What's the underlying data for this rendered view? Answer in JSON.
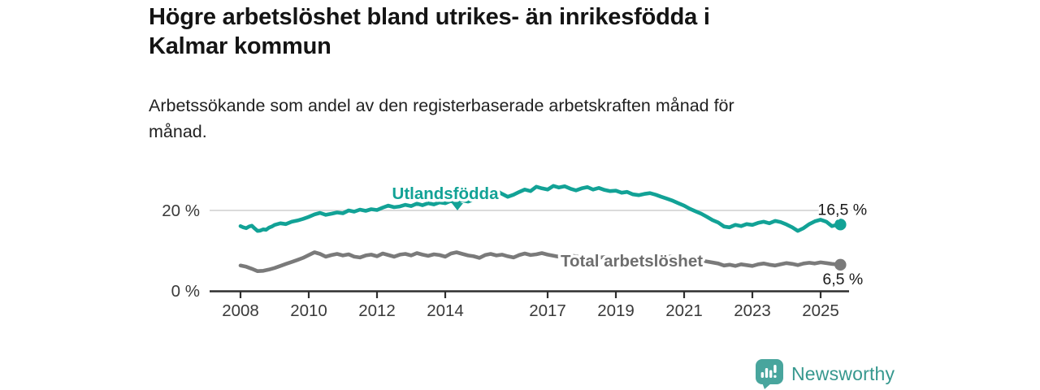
{
  "header": {
    "title": "Högre arbetslöshet bland utrikes- än inrikesfödda i\nKalmar kommun",
    "subtitle": "Arbetssökande som andel av den registerbaserade arbetskraften månad för\nmånad."
  },
  "footer": {
    "brand": "Newsworthy"
  },
  "colors": {
    "accent_teal": "#12a296",
    "series_gray": "#7a7a7a",
    "gray_label": "#6e6e6e",
    "axis_line": "#2e2e2e",
    "axis_text": "#3a3a3a",
    "gridline": "#cfcfcf",
    "annotation_text": "#1a1a1a",
    "logo_teal": "#48a59d",
    "brand_text": "#36988e"
  },
  "chart_data": {
    "type": "line",
    "unit": "%",
    "x_axis": {
      "ticks": [
        2008,
        2010,
        2012,
        2014,
        2017,
        2019,
        2021,
        2023,
        2025
      ],
      "range": [
        2007.6,
        2026.3
      ]
    },
    "y_axis": {
      "ticks": [
        {
          "v": 0,
          "label": "0 %"
        },
        {
          "v": 20,
          "label": "20 %"
        }
      ],
      "range": [
        0,
        29.5
      ],
      "gridlines": [
        20
      ]
    },
    "legend_position": "inline-labels",
    "series": [
      {
        "name": "Utlandsfödda",
        "color": "#12a296",
        "end_label": "16,5 %",
        "end_value": 16.5,
        "points": [
          [
            2008.0,
            16.1
          ],
          [
            2008.08,
            15.8
          ],
          [
            2008.17,
            15.6
          ],
          [
            2008.25,
            16.0
          ],
          [
            2008.33,
            16.2
          ],
          [
            2008.42,
            15.5
          ],
          [
            2008.5,
            14.9
          ],
          [
            2008.58,
            15.0
          ],
          [
            2008.67,
            15.3
          ],
          [
            2008.75,
            15.2
          ],
          [
            2008.83,
            15.7
          ],
          [
            2008.92,
            16.0
          ],
          [
            2009.0,
            16.4
          ],
          [
            2009.17,
            16.8
          ],
          [
            2009.33,
            16.6
          ],
          [
            2009.5,
            17.2
          ],
          [
            2009.67,
            17.5
          ],
          [
            2009.83,
            17.9
          ],
          [
            2010.0,
            18.4
          ],
          [
            2010.17,
            19.0
          ],
          [
            2010.33,
            19.4
          ],
          [
            2010.5,
            18.9
          ],
          [
            2010.67,
            19.2
          ],
          [
            2010.83,
            19.5
          ],
          [
            2011.0,
            19.3
          ],
          [
            2011.17,
            20.0
          ],
          [
            2011.33,
            19.7
          ],
          [
            2011.5,
            20.2
          ],
          [
            2011.67,
            19.9
          ],
          [
            2011.83,
            20.3
          ],
          [
            2012.0,
            20.1
          ],
          [
            2012.17,
            20.7
          ],
          [
            2012.33,
            21.2
          ],
          [
            2012.5,
            20.8
          ],
          [
            2012.67,
            21.0
          ],
          [
            2012.83,
            21.4
          ],
          [
            2013.0,
            21.1
          ],
          [
            2013.17,
            21.7
          ],
          [
            2013.33,
            21.3
          ],
          [
            2013.5,
            21.8
          ],
          [
            2013.67,
            21.5
          ],
          [
            2013.83,
            22.0
          ],
          [
            2014.0,
            21.8
          ],
          [
            2014.17,
            22.4
          ],
          [
            2014.33,
            22.0
          ],
          [
            2014.5,
            22.5
          ],
          [
            2014.67,
            22.2
          ],
          [
            2014.83,
            22.7
          ],
          [
            2015.0,
            23.2
          ],
          [
            2015.17,
            24.8
          ],
          [
            2015.33,
            24.4
          ],
          [
            2015.5,
            24.9
          ],
          [
            2015.67,
            24.1
          ],
          [
            2015.83,
            23.4
          ],
          [
            2016.0,
            23.9
          ],
          [
            2016.17,
            24.6
          ],
          [
            2016.33,
            25.2
          ],
          [
            2016.5,
            24.8
          ],
          [
            2016.67,
            25.9
          ],
          [
            2016.83,
            25.5
          ],
          [
            2017.0,
            25.2
          ],
          [
            2017.17,
            26.1
          ],
          [
            2017.33,
            25.7
          ],
          [
            2017.5,
            26.0
          ],
          [
            2017.67,
            25.4
          ],
          [
            2017.83,
            25.0
          ],
          [
            2018.0,
            25.5
          ],
          [
            2018.17,
            25.8
          ],
          [
            2018.33,
            25.2
          ],
          [
            2018.5,
            25.6
          ],
          [
            2018.67,
            25.1
          ],
          [
            2018.83,
            24.8
          ],
          [
            2019.0,
            24.9
          ],
          [
            2019.17,
            24.4
          ],
          [
            2019.33,
            24.6
          ],
          [
            2019.5,
            24.0
          ],
          [
            2019.67,
            23.8
          ],
          [
            2019.83,
            24.1
          ],
          [
            2020.0,
            24.3
          ],
          [
            2020.17,
            23.9
          ],
          [
            2020.33,
            23.4
          ],
          [
            2020.5,
            22.9
          ],
          [
            2020.67,
            22.4
          ],
          [
            2020.83,
            21.8
          ],
          [
            2021.0,
            21.2
          ],
          [
            2021.17,
            20.4
          ],
          [
            2021.33,
            19.8
          ],
          [
            2021.5,
            19.2
          ],
          [
            2021.67,
            18.4
          ],
          [
            2021.83,
            17.6
          ],
          [
            2022.0,
            17.0
          ],
          [
            2022.17,
            16.0
          ],
          [
            2022.33,
            15.8
          ],
          [
            2022.5,
            16.4
          ],
          [
            2022.67,
            16.1
          ],
          [
            2022.83,
            16.6
          ],
          [
            2023.0,
            16.4
          ],
          [
            2023.17,
            16.9
          ],
          [
            2023.33,
            17.2
          ],
          [
            2023.5,
            16.8
          ],
          [
            2023.67,
            17.4
          ],
          [
            2023.83,
            17.1
          ],
          [
            2024.0,
            16.5
          ],
          [
            2024.17,
            15.8
          ],
          [
            2024.33,
            14.9
          ],
          [
            2024.5,
            15.6
          ],
          [
            2024.67,
            16.6
          ],
          [
            2024.83,
            17.3
          ],
          [
            2025.0,
            17.7
          ],
          [
            2025.17,
            17.2
          ],
          [
            2025.33,
            16.1
          ],
          [
            2025.42,
            16.3
          ],
          [
            2025.58,
            16.5
          ]
        ]
      },
      {
        "name": "Total arbetslöshet",
        "color": "#7a7a7a",
        "end_label": "6,5 %",
        "end_value": 6.5,
        "points": [
          [
            2008.0,
            6.3
          ],
          [
            2008.17,
            6.0
          ],
          [
            2008.33,
            5.5
          ],
          [
            2008.5,
            4.9
          ],
          [
            2008.67,
            5.0
          ],
          [
            2008.83,
            5.3
          ],
          [
            2009.0,
            5.7
          ],
          [
            2009.17,
            6.2
          ],
          [
            2009.33,
            6.7
          ],
          [
            2009.5,
            7.2
          ],
          [
            2009.67,
            7.7
          ],
          [
            2009.83,
            8.2
          ],
          [
            2010.0,
            8.9
          ],
          [
            2010.17,
            9.6
          ],
          [
            2010.33,
            9.2
          ],
          [
            2010.5,
            8.5
          ],
          [
            2010.67,
            8.9
          ],
          [
            2010.83,
            9.2
          ],
          [
            2011.0,
            8.8
          ],
          [
            2011.17,
            9.1
          ],
          [
            2011.33,
            8.5
          ],
          [
            2011.5,
            8.3
          ],
          [
            2011.67,
            8.8
          ],
          [
            2011.83,
            9.0
          ],
          [
            2012.0,
            8.6
          ],
          [
            2012.17,
            9.3
          ],
          [
            2012.33,
            8.9
          ],
          [
            2012.5,
            8.5
          ],
          [
            2012.67,
            9.0
          ],
          [
            2012.83,
            9.2
          ],
          [
            2013.0,
            8.8
          ],
          [
            2013.17,
            9.4
          ],
          [
            2013.33,
            9.0
          ],
          [
            2013.5,
            8.7
          ],
          [
            2013.67,
            9.1
          ],
          [
            2013.83,
            8.9
          ],
          [
            2014.0,
            8.5
          ],
          [
            2014.17,
            9.3
          ],
          [
            2014.33,
            9.6
          ],
          [
            2014.5,
            9.2
          ],
          [
            2014.67,
            8.8
          ],
          [
            2014.83,
            8.6
          ],
          [
            2015.0,
            8.2
          ],
          [
            2015.17,
            8.9
          ],
          [
            2015.33,
            9.2
          ],
          [
            2015.5,
            8.8
          ],
          [
            2015.67,
            9.0
          ],
          [
            2015.83,
            8.6
          ],
          [
            2016.0,
            8.3
          ],
          [
            2016.17,
            8.9
          ],
          [
            2016.33,
            9.3
          ],
          [
            2016.5,
            8.9
          ],
          [
            2016.67,
            9.1
          ],
          [
            2016.83,
            9.4
          ],
          [
            2017.0,
            9.0
          ],
          [
            2017.25,
            8.6
          ],
          [
            2017.5,
            8.4
          ],
          [
            2017.75,
            8.7
          ],
          [
            2018.0,
            8.3
          ],
          [
            2018.33,
            8.1
          ],
          [
            2018.67,
            8.4
          ],
          [
            2019.0,
            8.0
          ],
          [
            2019.33,
            7.8
          ],
          [
            2019.67,
            7.9
          ],
          [
            2020.0,
            8.1
          ],
          [
            2020.25,
            8.8
          ],
          [
            2020.5,
            8.6
          ],
          [
            2020.75,
            8.4
          ],
          [
            2021.0,
            8.2
          ],
          [
            2021.33,
            7.8
          ],
          [
            2021.67,
            7.3
          ],
          [
            2022.0,
            6.8
          ],
          [
            2022.17,
            6.3
          ],
          [
            2022.33,
            6.5
          ],
          [
            2022.5,
            6.2
          ],
          [
            2022.67,
            6.6
          ],
          [
            2022.83,
            6.4
          ],
          [
            2023.0,
            6.2
          ],
          [
            2023.17,
            6.6
          ],
          [
            2023.33,
            6.8
          ],
          [
            2023.5,
            6.5
          ],
          [
            2023.67,
            6.3
          ],
          [
            2023.83,
            6.6
          ],
          [
            2024.0,
            6.9
          ],
          [
            2024.17,
            6.7
          ],
          [
            2024.33,
            6.4
          ],
          [
            2024.5,
            6.8
          ],
          [
            2024.67,
            7.0
          ],
          [
            2024.83,
            6.8
          ],
          [
            2025.0,
            7.1
          ],
          [
            2025.17,
            6.9
          ],
          [
            2025.33,
            6.7
          ],
          [
            2025.58,
            6.5
          ]
        ]
      }
    ]
  }
}
